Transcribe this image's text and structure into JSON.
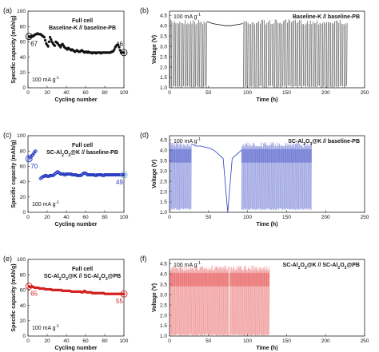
{
  "panels": [
    {
      "id": "a",
      "label": "(a)",
      "type": "capacity",
      "title_lines": [
        "Full cell",
        "Baseline-K // baseline-PB"
      ],
      "rate": "100 mA g",
      "rate_sup": "-1",
      "start_label": "67",
      "end_label": "46",
      "color": "#111111",
      "label_color": "#111111",
      "hollow": false
    },
    {
      "id": "b",
      "label": "(b)",
      "type": "voltage",
      "title": "Baseline-K // baseline-PB",
      "rate": "100 mA g",
      "rate_sup": "-1",
      "color": "#111111"
    },
    {
      "id": "c",
      "label": "(c)",
      "type": "capacity",
      "title_lines": [
        "Full cell",
        "SC-Al2O3@K // baseline-PB"
      ],
      "rate": "100 mA g",
      "rate_sup": "-1",
      "start_label": "70",
      "end_label": "49",
      "color": "#2a3cc0",
      "label_color": "#2a3cc0",
      "hollow": true
    },
    {
      "id": "d",
      "label": "(d)",
      "type": "voltage",
      "title": "SC-Al2O3@K // baseline-PB",
      "rate": "100 mA g",
      "rate_sup": "-1",
      "color": "#2a3cc0"
    },
    {
      "id": "e",
      "label": "(e)",
      "type": "capacity",
      "title_lines": [
        "Full cell",
        "SC-Al2O3@K // SC-Al2O3@PB"
      ],
      "rate": "100 mA g",
      "rate_sup": "-1",
      "start_label": "65",
      "end_label": "55",
      "color": "#d42020",
      "label_color": "#d42020",
      "hollow": false
    },
    {
      "id": "f",
      "label": "(f)",
      "type": "voltage",
      "title": "SC-Al2O3@K // SC-Al2O3@PB",
      "rate": "100 mA g",
      "rate_sup": "-1",
      "color": "#e03030"
    }
  ],
  "axes": {
    "capacity": {
      "xlabel": "Cycling number",
      "ylabel": "Specific capacity (mAh/g)",
      "xticks": [
        0,
        20,
        40,
        60,
        80,
        100
      ],
      "yticks": [
        0,
        20,
        40,
        60,
        80,
        100
      ],
      "xlim": [
        0,
        100
      ],
      "ylim": [
        0,
        100
      ]
    },
    "voltage": {
      "xlabel": "Time (h)",
      "ylabel": "Voltage (V)",
      "xticks": [
        0,
        50,
        100,
        150,
        200,
        250
      ],
      "yticks": [
        1.0,
        1.5,
        2.0,
        2.5,
        3.0,
        3.5,
        4.0,
        4.5
      ],
      "xlim": [
        0,
        250
      ],
      "ylim": [
        1.0,
        4.7
      ]
    }
  },
  "chart_data": [
    {
      "type": "scatter",
      "panel": "a",
      "series": [
        {
          "name": "",
          "x": [
            1,
            2,
            3,
            4,
            5,
            6,
            7,
            8,
            9,
            10,
            11,
            12,
            13,
            14,
            15,
            16,
            17,
            18,
            19,
            20,
            21,
            22,
            23,
            24,
            25,
            26,
            27,
            28,
            29,
            30,
            31,
            32,
            33,
            34,
            35,
            36,
            37,
            38,
            39,
            40,
            41,
            42,
            43,
            44,
            45,
            46,
            47,
            48,
            49,
            50,
            51,
            52,
            53,
            54,
            55,
            56,
            57,
            58,
            59,
            60,
            61,
            62,
            63,
            64,
            65,
            66,
            67,
            68,
            69,
            70,
            71,
            72,
            73,
            74,
            75,
            76,
            77,
            78,
            79,
            80,
            81,
            82,
            83,
            84,
            85,
            86,
            87,
            88,
            89,
            90,
            91,
            92,
            93,
            94,
            95,
            96,
            97,
            98,
            99,
            100
          ],
          "y": [
            67,
            66,
            67,
            68,
            67,
            68,
            69,
            70,
            70,
            71,
            70,
            70,
            70,
            69,
            68,
            67,
            66,
            62,
            58,
            56,
            54,
            60,
            66,
            63,
            60,
            58,
            56,
            55,
            60,
            59,
            58,
            56,
            55,
            53,
            56,
            57,
            55,
            53,
            52,
            51,
            50,
            52,
            51,
            50,
            49,
            50,
            49,
            48,
            47,
            48,
            49,
            48,
            47,
            47,
            48,
            49,
            48,
            47,
            46,
            47,
            47,
            46,
            47,
            46,
            46,
            46,
            45,
            46,
            46,
            46,
            45,
            46,
            46,
            46,
            46,
            45,
            46,
            46,
            46,
            46,
            46,
            46,
            46,
            46,
            46,
            46,
            47,
            47,
            48,
            50,
            53,
            55,
            56,
            56,
            53,
            49,
            46,
            46,
            46,
            46
          ]
        }
      ],
      "xlabel": "Cycling number",
      "ylabel": "Specific capacity (mAh/g)",
      "xlim": [
        0,
        100
      ],
      "ylim": [
        0,
        100
      ]
    },
    {
      "type": "line",
      "panel": "b",
      "note": "galvanostatic voltage profile",
      "segments": [
        {
          "t": [
            0,
            48
          ],
          "mode": "cycling",
          "vmin": 1.0,
          "vmax": 4.3
        },
        {
          "t": [
            48,
            94
          ],
          "mode": "hold",
          "v": [
            4.2,
            4.1,
            4.05,
            4.0,
            4.0,
            4.05,
            4.1
          ]
        },
        {
          "t": [
            94,
            228
          ],
          "mode": "cycling",
          "vmin": 1.0,
          "vmax": 4.3
        }
      ],
      "xlabel": "Time (h)",
      "ylabel": "Voltage (V)"
    },
    {
      "type": "scatter",
      "panel": "c",
      "series": [
        {
          "name": "",
          "x": [
            1,
            2,
            3,
            4,
            5,
            6,
            7,
            8,
            9,
            10,
            11,
            12,
            13,
            14,
            15,
            16,
            17,
            18,
            19,
            20,
            21,
            22,
            23,
            24,
            25,
            26,
            27,
            28,
            29,
            30,
            31,
            32,
            33,
            34,
            35,
            36,
            37,
            38,
            39,
            40,
            41,
            42,
            43,
            44,
            45,
            46,
            47,
            48,
            49,
            50,
            51,
            52,
            53,
            54,
            55,
            56,
            57,
            58,
            59,
            60,
            61,
            62,
            63,
            64,
            65,
            66,
            67,
            68,
            69,
            70,
            71,
            72,
            73,
            74,
            75,
            76,
            77,
            78,
            79,
            80,
            81,
            82,
            83,
            84,
            85,
            86,
            87,
            88,
            89,
            90,
            91,
            92,
            93,
            94,
            95,
            96,
            97,
            98,
            99,
            100
          ],
          "y": [
            70,
            72,
            72,
            74,
            75,
            77,
            79,
            80,
            null,
            null,
            null,
            null,
            44,
            45,
            46,
            47,
            47,
            48,
            48,
            47,
            47,
            47,
            48,
            48,
            48,
            48,
            49,
            50,
            51,
            52,
            53,
            52,
            51,
            50,
            50,
            50,
            50,
            49,
            49,
            50,
            50,
            50,
            50,
            50,
            50,
            49,
            49,
            49,
            49,
            49,
            48,
            48,
            48,
            48,
            48,
            49,
            50,
            51,
            51,
            51,
            50,
            49,
            49,
            49,
            49,
            49,
            49,
            49,
            49,
            48,
            48,
            49,
            49,
            49,
            49,
            49,
            49,
            48,
            48,
            49,
            49,
            49,
            49,
            49,
            49,
            49,
            49,
            49,
            49,
            49,
            49,
            49,
            49,
            49,
            49,
            49,
            49,
            49,
            49,
            49
          ]
        }
      ],
      "xlabel": "Cycling number",
      "ylabel": "Specific capacity (mAh/g)",
      "xlim": [
        0,
        100
      ],
      "ylim": [
        0,
        100
      ]
    },
    {
      "type": "line",
      "panel": "d",
      "note": "galvanostatic voltage profile",
      "segments": [
        {
          "t": [
            0,
            28
          ],
          "mode": "cycling",
          "vmin": 1.1,
          "vmax": 4.4
        },
        {
          "t": [
            28,
            92
          ],
          "mode": "hold",
          "v": [
            4.3,
            4.2,
            4.2,
            4.15,
            4.1,
            4.0,
            3.8,
            3.6,
            1.0,
            3.6,
            3.8,
            4.0
          ]
        },
        {
          "t": [
            92,
            182
          ],
          "mode": "cycling",
          "vmin": 1.1,
          "vmax": 4.4
        }
      ],
      "xlabel": "Time (h)",
      "ylabel": "Voltage (V)"
    },
    {
      "type": "scatter",
      "panel": "e",
      "series": [
        {
          "name": "",
          "x": [
            1,
            2,
            3,
            4,
            5,
            6,
            7,
            8,
            9,
            10,
            11,
            12,
            13,
            14,
            15,
            16,
            17,
            18,
            19,
            20,
            21,
            22,
            23,
            24,
            25,
            26,
            27,
            28,
            29,
            30,
            31,
            32,
            33,
            34,
            35,
            36,
            37,
            38,
            39,
            40,
            41,
            42,
            43,
            44,
            45,
            46,
            47,
            48,
            49,
            50,
            51,
            52,
            53,
            54,
            55,
            56,
            57,
            58,
            59,
            60,
            61,
            62,
            63,
            64,
            65,
            66,
            67,
            68,
            69,
            70,
            71,
            72,
            73,
            74,
            75,
            76,
            77,
            78,
            79,
            80,
            81,
            82,
            83,
            84,
            85,
            86,
            87,
            88,
            89,
            90,
            91,
            92,
            93,
            94,
            95,
            96,
            97,
            98,
            99,
            100
          ],
          "y": [
            65,
            64,
            64,
            65,
            64,
            64,
            63,
            63,
            63,
            63,
            63,
            62,
            62,
            62,
            62,
            62,
            62,
            61,
            61,
            61,
            61,
            61,
            61,
            61,
            60,
            60,
            60,
            60,
            60,
            60,
            60,
            60,
            60,
            60,
            60,
            59,
            59,
            59,
            59,
            59,
            59,
            59,
            59,
            59,
            58,
            58,
            58,
            58,
            58,
            58,
            58,
            58,
            58,
            58,
            58,
            57,
            57,
            58,
            59,
            58,
            57,
            57,
            57,
            57,
            57,
            57,
            56,
            56,
            56,
            56,
            56,
            56,
            56,
            56,
            56,
            56,
            56,
            56,
            56,
            55,
            55,
            55,
            55,
            55,
            55,
            55,
            55,
            55,
            55,
            55,
            55,
            55,
            55,
            55,
            55,
            55,
            55,
            55,
            55,
            55
          ]
        }
      ],
      "xlabel": "Cycling number",
      "ylabel": "Specific capacity (mAh/g)",
      "xlim": [
        0,
        100
      ],
      "ylim": [
        0,
        100
      ]
    },
    {
      "type": "line",
      "panel": "f",
      "note": "galvanostatic voltage profile",
      "segments": [
        {
          "t": [
            0,
            76
          ],
          "mode": "cycling",
          "vmin": 1.0,
          "vmax": 4.4
        },
        {
          "t": [
            77,
            128
          ],
          "mode": "cycling",
          "vmin": 1.0,
          "vmax": 4.4
        }
      ],
      "xlabel": "Time (h)",
      "ylabel": "Voltage (V)"
    }
  ]
}
